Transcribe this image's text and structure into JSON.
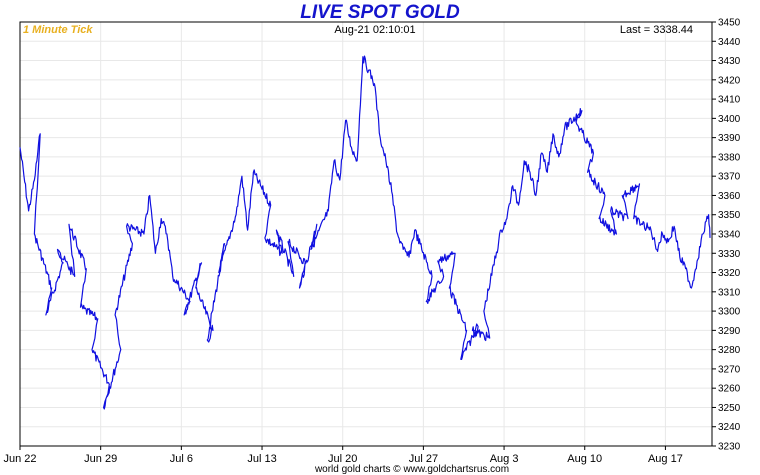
{
  "header": {
    "title": "LIVE SPOT GOLD",
    "interval": "1 Minute Tick",
    "timestamp": "Aug-21  02:10:01",
    "last": "Last = 3338.44"
  },
  "footer": {
    "credit": "world gold charts © www.goldchartsrus.com"
  },
  "colors": {
    "line": "#1010e0",
    "title": "#1414cc",
    "interval": "#e8b020",
    "grid": "#e8e8e8"
  },
  "chart_data": {
    "type": "line",
    "title": "LIVE SPOT GOLD",
    "xlabel": "",
    "ylabel": "",
    "ylim": [
      3230,
      3450
    ],
    "yticks": [
      3230,
      3240,
      3250,
      3260,
      3270,
      3280,
      3290,
      3300,
      3310,
      3320,
      3330,
      3340,
      3350,
      3360,
      3370,
      3380,
      3390,
      3400,
      3410,
      3420,
      3430,
      3440,
      3450
    ],
    "xlim": [
      "2025-06-22",
      "2025-08-21"
    ],
    "xticks": [
      {
        "date": "2025-06-22",
        "label": "Jun 22"
      },
      {
        "date": "2025-06-29",
        "label": "Jun 29"
      },
      {
        "date": "2025-07-06",
        "label": "Jul 6"
      },
      {
        "date": "2025-07-13",
        "label": "Jul 13"
      },
      {
        "date": "2025-07-20",
        "label": "Jul 20"
      },
      {
        "date": "2025-07-27",
        "label": "Jul 27"
      },
      {
        "date": "2025-08-03",
        "label": "Aug 3"
      },
      {
        "date": "2025-08-10",
        "label": "Aug 10"
      },
      {
        "date": "2025-08-17",
        "label": "Aug 17"
      }
    ],
    "grid": true,
    "yaxis_side": "right",
    "series": [
      {
        "x": [
          "2025-06-22",
          "2025-06-22",
          "2025-06-23",
          "2025-06-23",
          "2025-06-23",
          "2025-06-24",
          "2025-06-24",
          "2025-06-25",
          "2025-06-25",
          "2025-06-26",
          "2025-06-26",
          "2025-06-27",
          "2025-06-27",
          "2025-06-28",
          "2025-06-28",
          "2025-06-29",
          "2025-06-29",
          "2025-06-30",
          "2025-06-30",
          "2025-07-01",
          "2025-07-01",
          "2025-07-02",
          "2025-07-03",
          "2025-07-03",
          "2025-07-04",
          "2025-07-04",
          "2025-07-05",
          "2025-07-06",
          "2025-07-06",
          "2025-07-07",
          "2025-07-07",
          "2025-07-08",
          "2025-07-08",
          "2025-07-09",
          "2025-07-09",
          "2025-07-10",
          "2025-07-11",
          "2025-07-11",
          "2025-07-12",
          "2025-07-13",
          "2025-07-13",
          "2025-07-14",
          "2025-07-14",
          "2025-07-15",
          "2025-07-15",
          "2025-07-16",
          "2025-07-16",
          "2025-07-17",
          "2025-07-17",
          "2025-07-18",
          "2025-07-19",
          "2025-07-19",
          "2025-07-20",
          "2025-07-20",
          "2025-07-21",
          "2025-07-21",
          "2025-07-22",
          "2025-07-22",
          "2025-07-23",
          "2025-07-23",
          "2025-07-24",
          "2025-07-24",
          "2025-07-25",
          "2025-07-25",
          "2025-07-26",
          "2025-07-27",
          "2025-07-27",
          "2025-07-28",
          "2025-07-28",
          "2025-07-29",
          "2025-07-29",
          "2025-07-30",
          "2025-07-30",
          "2025-07-31",
          "2025-07-31",
          "2025-08-01",
          "2025-08-01",
          "2025-08-02",
          "2025-08-03",
          "2025-08-03",
          "2025-08-04",
          "2025-08-04",
          "2025-08-05",
          "2025-08-05",
          "2025-08-06",
          "2025-08-06",
          "2025-08-07",
          "2025-08-07",
          "2025-08-08",
          "2025-08-09",
          "2025-08-09",
          "2025-08-10",
          "2025-08-10",
          "2025-08-11",
          "2025-08-11",
          "2025-08-12",
          "2025-08-12",
          "2025-08-13",
          "2025-08-13",
          "2025-08-14",
          "2025-08-14",
          "2025-08-15",
          "2025-08-16",
          "2025-08-16",
          "2025-08-17",
          "2025-08-17",
          "2025-08-18",
          "2025-08-18",
          "2025-08-19",
          "2025-08-19",
          "2025-08-20",
          "2025-08-20",
          "2025-08-21"
        ],
        "values": [
          3385,
          3352,
          3368,
          3392,
          3340,
          3312,
          3298,
          3325,
          3332,
          3318,
          3345,
          3322,
          3302,
          3296,
          3280,
          3262,
          3250,
          3280,
          3298,
          3335,
          3344,
          3340,
          3360,
          3330,
          3348,
          3340,
          3318,
          3305,
          3298,
          3325,
          3312,
          3290,
          3285,
          3335,
          3320,
          3350,
          3370,
          3342,
          3372,
          3355,
          3338,
          3330,
          3342,
          3318,
          3336,
          3325,
          3312,
          3345,
          3332,
          3352,
          3378,
          3368,
          3399,
          3385,
          3378,
          3432,
          3425,
          3418,
          3390,
          3378,
          3362,
          3340,
          3332,
          3328,
          3342,
          3318,
          3305,
          3318,
          3326,
          3330,
          3312,
          3290,
          3275,
          3292,
          3290,
          3286,
          3300,
          3342,
          3348,
          3365,
          3355,
          3378,
          3372,
          3360,
          3382,
          3372,
          3392,
          3380,
          3395,
          3404,
          3398,
          3382,
          3372,
          3360,
          3348,
          3340,
          3352,
          3348,
          3360,
          3366,
          3348,
          3342,
          3332,
          3340,
          3336,
          3344,
          3328,
          3322,
          3312,
          3326,
          3340,
          3350,
          3338
        ]
      }
    ]
  }
}
